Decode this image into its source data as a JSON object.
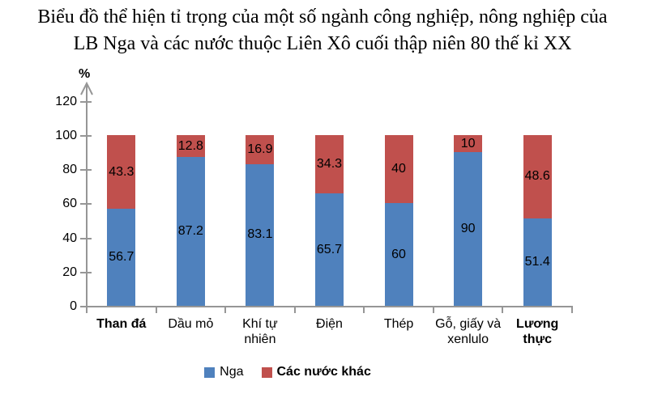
{
  "title": {
    "lines": [
      "Biểu đồ thể hiện tỉ trọng của một số ngành công nghiệp, nông nghiệp của",
      "LB Nga và các nước thuộc Liên Xô cuối thập niên 80 thế kỉ XX"
    ]
  },
  "chart_data": {
    "type": "bar",
    "stacked": true,
    "categories": [
      "Than đá",
      "Dầu mỏ",
      "Khí tự\nnhiên",
      "Điện",
      "Thép",
      "Gỗ, giấy và\nxenlulo",
      "Lương\nthực"
    ],
    "category_bold": [
      true,
      false,
      false,
      false,
      false,
      false,
      true
    ],
    "series": [
      {
        "name": "Nga",
        "color": "#4F81BD",
        "values": [
          56.7,
          87.2,
          83.1,
          65.7,
          60,
          90,
          51.4
        ]
      },
      {
        "name": "Các nước khác",
        "color": "#C0504D",
        "values": [
          43.3,
          12.8,
          16.9,
          34.3,
          40,
          10,
          48.6
        ]
      }
    ],
    "title": "",
    "xlabel": "",
    "ylabel": "%",
    "ylim": [
      0,
      130
    ],
    "yticks": [
      0,
      20,
      40,
      60,
      80,
      100,
      120
    ],
    "grid": false,
    "legend_position": "bottom",
    "data_labels": "centered-in-segment"
  },
  "colors": {
    "series_nga": "#4F81BD",
    "series_khac": "#C0504D",
    "axis": "#969696",
    "text": "#000000"
  }
}
